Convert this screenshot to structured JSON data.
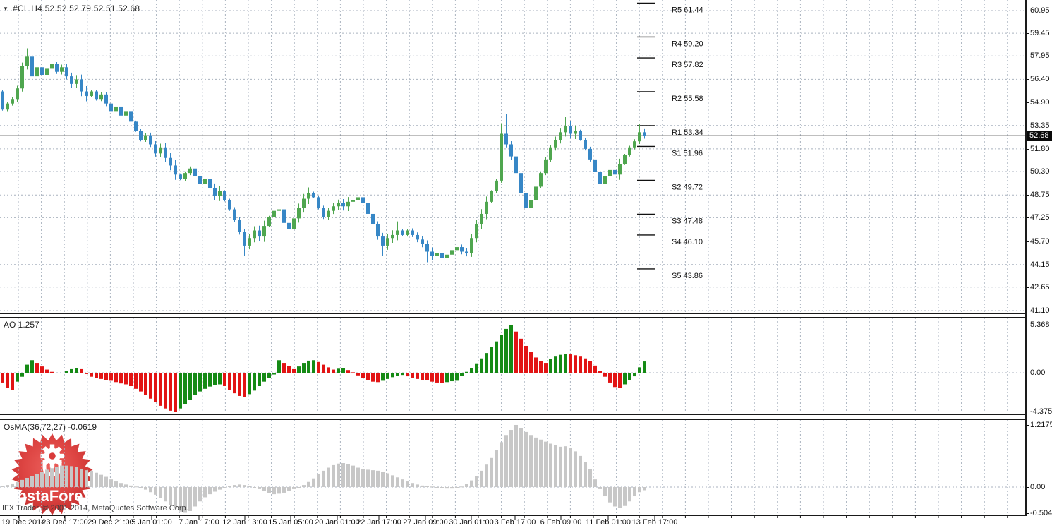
{
  "symbol_bar": {
    "dropdown_icon": "symbol-dropdown",
    "symbol": "#CL,H4",
    "ohlc": "52.52 52.79 52.51 52.68"
  },
  "price_axis": {
    "labels": [
      60.95,
      59.45,
      57.95,
      56.4,
      54.9,
      53.35,
      51.8,
      50.3,
      48.75,
      47.25,
      45.7,
      44.15,
      42.65,
      41.1
    ],
    "current_price": "52.68"
  },
  "pivots": [
    {
      "label": "R5",
      "text": "61.44",
      "price": 61.44
    },
    {
      "label": "R4",
      "text": "59.20",
      "price": 59.2
    },
    {
      "label": "R3",
      "text": "57.82",
      "price": 57.82
    },
    {
      "label": "R2",
      "text": "55.58",
      "price": 55.58
    },
    {
      "label": "R1",
      "text": "53.34",
      "price": 53.34
    },
    {
      "label": "S1",
      "text": "51.96",
      "price": 51.96
    },
    {
      "label": "S2",
      "text": "49.72",
      "price": 49.72
    },
    {
      "label": "S3",
      "text": "47.48",
      "price": 47.48
    },
    {
      "label": "S4",
      "text": "46.10",
      "price": 46.1
    },
    {
      "label": "S5",
      "text": "43.86",
      "price": 43.86
    }
  ],
  "indicators": {
    "ao": {
      "label": "AO 1.257",
      "axis": [
        {
          "text": "5.368",
          "value": 5.368
        },
        {
          "text": "0.00",
          "value": 0
        },
        {
          "text": "-4.375",
          "value": -4.375
        }
      ]
    },
    "osma": {
      "label": "OsMA(36,72,27) -0.0619",
      "axis": [
        {
          "text": "1.2175",
          "value": 1.2175
        },
        {
          "text": "0.00",
          "value": 0
        },
        {
          "text": "-0.5049",
          "value": -0.5049
        }
      ]
    }
  },
  "time_axis": {
    "labels": [
      "19 Dec 2014",
      "23 Dec 17:00",
      "29 Dec 21:00",
      "5 Jan 01:00",
      "7 Jan 17:00",
      "12 Jan 13:00",
      "15 Jan 05:00",
      "20 Jan 01:00",
      "22 Jan 17:00",
      "27 Jan 09:00",
      "30 Jan 01:00",
      "3 Feb 17:00",
      "6 Feb 09:00",
      "11 Feb 01:00",
      "13 Feb 17:00"
    ]
  },
  "footer": {
    "copyright": "IFX Trader, © 2001-2014, MetaQuotes Software Corp."
  },
  "logo": {
    "text": "InstaForex"
  },
  "colors": {
    "candle_up": "#4fa64f",
    "candle_down": "#3787c6",
    "ao_up": "#158a15",
    "ao_down": "#e21414",
    "osma_bar": "#c7c7c7",
    "grid": "#a9b2bf",
    "current_price_line": "#7f7f7f",
    "logo_red": "#d93a3a"
  },
  "chart_data": {
    "type": "candlestick",
    "symbol": "#CL",
    "timeframe": "H4",
    "quote": {
      "open": "52.52",
      "high": "52.79",
      "low": "52.51",
      "close": "52.68"
    },
    "ylim": [
      41.1,
      60.95
    ],
    "current_price": 52.68,
    "closes": [
      54.4,
      54.8,
      55.1,
      55.8,
      57.3,
      57.9,
      56.6,
      57.2,
      56.7,
      57.1,
      57.4,
      56.9,
      57.2,
      56.6,
      56.1,
      56.4,
      55.6,
      55.3,
      55.6,
      55.1,
      55.4,
      54.8,
      54.3,
      54.6,
      54.0,
      54.3,
      53.6,
      53.0,
      52.4,
      52.7,
      52.1,
      51.5,
      51.9,
      51.2,
      50.7,
      50.1,
      49.8,
      50.2,
      50.5,
      50.0,
      49.5,
      49.8,
      49.2,
      48.7,
      49.0,
      48.4,
      47.8,
      47.1,
      46.3,
      45.4,
      45.9,
      46.4,
      46.0,
      46.7,
      47.3,
      47.7,
      47.8,
      46.9,
      46.5,
      47.2,
      47.9,
      48.5,
      48.9,
      48.6,
      47.9,
      47.3,
      47.7,
      48.0,
      48.2,
      48.0,
      48.3,
      48.4,
      48.6,
      48.2,
      47.5,
      46.8,
      46.0,
      45.4,
      45.9,
      46.1,
      46.4,
      46.1,
      46.4,
      46.1,
      45.8,
      45.5,
      45.0,
      44.7,
      44.9,
      44.6,
      44.8,
      45.1,
      45.3,
      45.0,
      44.9,
      45.9,
      46.8,
      47.5,
      48.3,
      49.0,
      49.7,
      52.8,
      52.1,
      51.3,
      50.2,
      48.9,
      47.9,
      48.4,
      49.3,
      50.2,
      51.1,
      51.9,
      52.4,
      52.9,
      53.3,
      52.8,
      53.0,
      52.4,
      51.8,
      51.1,
      50.3,
      49.5,
      50.0,
      50.4,
      50.1,
      50.8,
      51.4,
      51.9,
      52.3,
      52.9,
      52.68
    ],
    "overrides": {
      "0": {
        "o": 55.6
      },
      "5": {
        "h": 58.45
      },
      "49": {
        "l": 44.7
      },
      "56": {
        "h": 51.5
      },
      "72": {
        "h": 49.1
      },
      "77": {
        "l": 44.7
      },
      "80": {
        "h": 47.0
      },
      "86": {
        "l": 44.3
      },
      "89": {
        "l": 43.9
      },
      "90": {
        "l": 44.0
      },
      "101": {
        "h": 53.5
      },
      "102": {
        "h": 54.1,
        "l": 51.9
      },
      "106": {
        "l": 47.1
      },
      "114": {
        "h": 53.9
      },
      "121": {
        "l": 48.2
      },
      "129": {
        "h": 53.45
      }
    },
    "ao_values": [
      -1.1,
      -1.7,
      -1.9,
      -1.0,
      -0.45,
      0.9,
      1.4,
      1.1,
      0.7,
      0.35,
      0.1,
      -0.05,
      -0.05,
      0.2,
      0.4,
      0.55,
      0.4,
      -0.15,
      -0.45,
      -0.6,
      -0.7,
      -0.8,
      -0.9,
      -1.05,
      -1.2,
      -1.3,
      -1.5,
      -1.8,
      -2.1,
      -2.5,
      -2.9,
      -3.3,
      -3.7,
      -4.0,
      -4.25,
      -4.375,
      -4.0,
      -3.5,
      -3.0,
      -2.5,
      -2.1,
      -1.8,
      -1.55,
      -1.4,
      -1.3,
      -1.5,
      -1.9,
      -2.3,
      -2.6,
      -2.7,
      -2.4,
      -2.0,
      -1.5,
      -1.0,
      -0.6,
      -0.2,
      1.4,
      1.1,
      0.75,
      0.4,
      0.7,
      1.1,
      1.35,
      1.4,
      1.2,
      0.9,
      0.6,
      0.35,
      0.45,
      0.5,
      0.3,
      0.05,
      -0.3,
      -0.6,
      -0.85,
      -1.0,
      -1.05,
      -0.9,
      -0.7,
      -0.5,
      -0.35,
      -0.25,
      -0.4,
      -0.55,
      -0.7,
      -0.8,
      -0.85,
      -1.0,
      -1.1,
      -1.15,
      -1.05,
      -0.95,
      -0.9,
      -0.35,
      0.1,
      0.55,
      1.05,
      1.6,
      2.2,
      2.85,
      3.5,
      4.2,
      4.9,
      5.368,
      4.6,
      3.8,
      3.0,
      2.3,
      1.7,
      1.3,
      1.1,
      1.5,
      1.8,
      2.0,
      2.1,
      2.05,
      1.95,
      1.8,
      1.6,
      1.3,
      0.8,
      0.2,
      -0.45,
      -1.1,
      -1.6,
      -1.7,
      -1.3,
      -0.85,
      -0.4,
      0.6,
      1.257
    ],
    "osma_values": [
      0.02,
      0.04,
      0.07,
      0.1,
      0.14,
      0.18,
      0.22,
      0.26,
      0.3,
      0.34,
      0.37,
      0.4,
      0.42,
      0.42,
      0.41,
      0.39,
      0.36,
      0.33,
      0.32,
      0.28,
      0.24,
      0.2,
      0.15,
      0.11,
      0.08,
      0.05,
      0.03,
      0.01,
      -0.01,
      -0.05,
      -0.1,
      -0.15,
      -0.21,
      -0.28,
      -0.35,
      -0.42,
      -0.48,
      -0.5049,
      -0.47,
      -0.38,
      -0.28,
      -0.2,
      -0.14,
      -0.09,
      -0.05,
      -0.01,
      0.02,
      0.04,
      0.05,
      0.04,
      0.02,
      -0.01,
      -0.04,
      -0.08,
      -0.12,
      -0.14,
      -0.13,
      -0.11,
      -0.08,
      -0.04,
      -0.01,
      0.04,
      0.1,
      0.17,
      0.25,
      0.32,
      0.38,
      0.43,
      0.46,
      0.47,
      0.45,
      0.42,
      0.38,
      0.35,
      0.34,
      0.33,
      0.32,
      0.3,
      0.27,
      0.23,
      0.19,
      0.15,
      0.11,
      0.08,
      0.05,
      0.03,
      0.02,
      0.01,
      -0.01,
      -0.02,
      -0.03,
      -0.03,
      -0.02,
      0.01,
      0.06,
      0.13,
      0.22,
      0.32,
      0.44,
      0.57,
      0.72,
      0.88,
      1.02,
      1.12,
      1.2175,
      1.15,
      1.08,
      1.02,
      0.97,
      0.93,
      0.89,
      0.85,
      0.82,
      0.79,
      0.8,
      0.77,
      0.7,
      0.61,
      0.49,
      0.35,
      0.15,
      -0.04,
      -0.18,
      -0.3,
      -0.38,
      -0.41,
      -0.37,
      -0.28,
      -0.18,
      -0.1,
      -0.0619
    ]
  }
}
